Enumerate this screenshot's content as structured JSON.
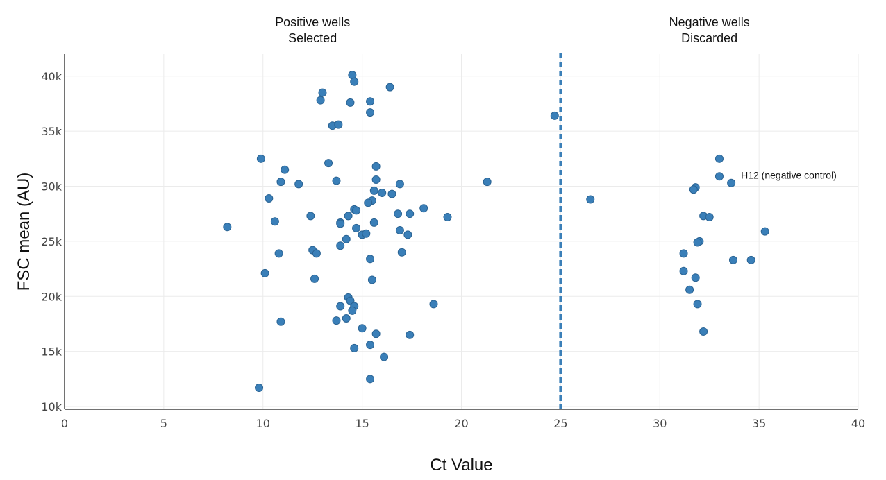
{
  "chart_data": {
    "type": "scatter",
    "xlabel": "Ct Value",
    "ylabel": "FSC mean (AU)",
    "xlim": [
      0,
      40
    ],
    "ylim": [
      10000,
      42000
    ],
    "x_ticks": [
      0,
      5,
      10,
      15,
      20,
      25,
      30,
      35,
      40
    ],
    "x_tick_labels": [
      "0",
      "5",
      "10",
      "15",
      "20",
      "25",
      "30",
      "35",
      "40"
    ],
    "y_ticks": [
      10000,
      15000,
      20000,
      25000,
      30000,
      35000,
      40000
    ],
    "y_tick_labels": [
      "10k",
      "15k",
      "20k",
      "25k",
      "30k",
      "35k",
      "40k"
    ],
    "grid": true,
    "threshold_x": 25,
    "regions": [
      {
        "line1": "Positive wells",
        "line2": "Selected",
        "x_center": 12.5
      },
      {
        "line1": "Negative wells",
        "line2": "Discarded",
        "x_center": 32.5
      }
    ],
    "annotations": [
      {
        "text": "H12 (negative control)",
        "x": 33.6,
        "y": 30300
      }
    ],
    "colors": {
      "marker": "#3a7fb8",
      "marker_edge": "#2a6393",
      "threshold": "#3a7fb8",
      "grid": "#ebebeb",
      "axis": "#444444"
    },
    "series": [
      {
        "points": [
          [
            14.5,
            40100
          ],
          [
            14.6,
            39500
          ],
          [
            16.4,
            39000
          ],
          [
            13.0,
            38500
          ],
          [
            12.9,
            37800
          ],
          [
            15.4,
            37700
          ],
          [
            14.4,
            37600
          ],
          [
            15.4,
            36700
          ],
          [
            24.7,
            36400
          ],
          [
            13.5,
            35500
          ],
          [
            13.8,
            35600
          ],
          [
            9.9,
            32500
          ],
          [
            13.3,
            32100
          ],
          [
            11.1,
            31500
          ],
          [
            15.7,
            31800
          ],
          [
            13.7,
            30500
          ],
          [
            15.7,
            30600
          ],
          [
            10.9,
            30400
          ],
          [
            11.8,
            30200
          ],
          [
            16.9,
            30200
          ],
          [
            21.3,
            30400
          ],
          [
            15.6,
            29600
          ],
          [
            16.0,
            29400
          ],
          [
            16.5,
            29300
          ],
          [
            10.3,
            28900
          ],
          [
            15.5,
            28700
          ],
          [
            15.3,
            28500
          ],
          [
            14.6,
            27900
          ],
          [
            14.7,
            27800
          ],
          [
            18.1,
            28000
          ],
          [
            12.4,
            27300
          ],
          [
            14.3,
            27300
          ],
          [
            16.8,
            27500
          ],
          [
            17.4,
            27500
          ],
          [
            19.3,
            27200
          ],
          [
            10.6,
            26800
          ],
          [
            13.9,
            26700
          ],
          [
            13.9,
            26600
          ],
          [
            15.6,
            26700
          ],
          [
            8.2,
            26300
          ],
          [
            14.7,
            26200
          ],
          [
            16.9,
            26000
          ],
          [
            15.0,
            25600
          ],
          [
            15.2,
            25700
          ],
          [
            17.3,
            25600
          ],
          [
            14.2,
            25200
          ],
          [
            13.9,
            24600
          ],
          [
            12.5,
            24200
          ],
          [
            12.7,
            23900
          ],
          [
            10.8,
            23900
          ],
          [
            17.0,
            24000
          ],
          [
            15.4,
            23400
          ],
          [
            10.1,
            22100
          ],
          [
            12.6,
            21600
          ],
          [
            15.5,
            21500
          ],
          [
            14.3,
            19900
          ],
          [
            14.4,
            19600
          ],
          [
            13.9,
            19100
          ],
          [
            14.6,
            19100
          ],
          [
            14.5,
            18700
          ],
          [
            18.6,
            19300
          ],
          [
            14.2,
            18000
          ],
          [
            13.7,
            17800
          ],
          [
            10.9,
            17700
          ],
          [
            15.0,
            17100
          ],
          [
            15.7,
            16600
          ],
          [
            17.4,
            16500
          ],
          [
            15.4,
            15600
          ],
          [
            14.6,
            15300
          ],
          [
            16.1,
            14500
          ],
          [
            15.4,
            12500
          ],
          [
            9.8,
            11700
          ],
          [
            26.5,
            28800
          ],
          [
            33.0,
            32500
          ],
          [
            33.0,
            30900
          ],
          [
            33.6,
            30300
          ],
          [
            31.8,
            29900
          ],
          [
            31.7,
            29700
          ],
          [
            32.2,
            27300
          ],
          [
            32.5,
            27200
          ],
          [
            35.3,
            25900
          ],
          [
            32.0,
            25000
          ],
          [
            31.9,
            24900
          ],
          [
            31.2,
            23900
          ],
          [
            33.7,
            23300
          ],
          [
            34.6,
            23300
          ],
          [
            31.2,
            22300
          ],
          [
            31.8,
            21700
          ],
          [
            31.5,
            20600
          ],
          [
            31.9,
            19300
          ],
          [
            32.2,
            16800
          ]
        ]
      }
    ]
  }
}
